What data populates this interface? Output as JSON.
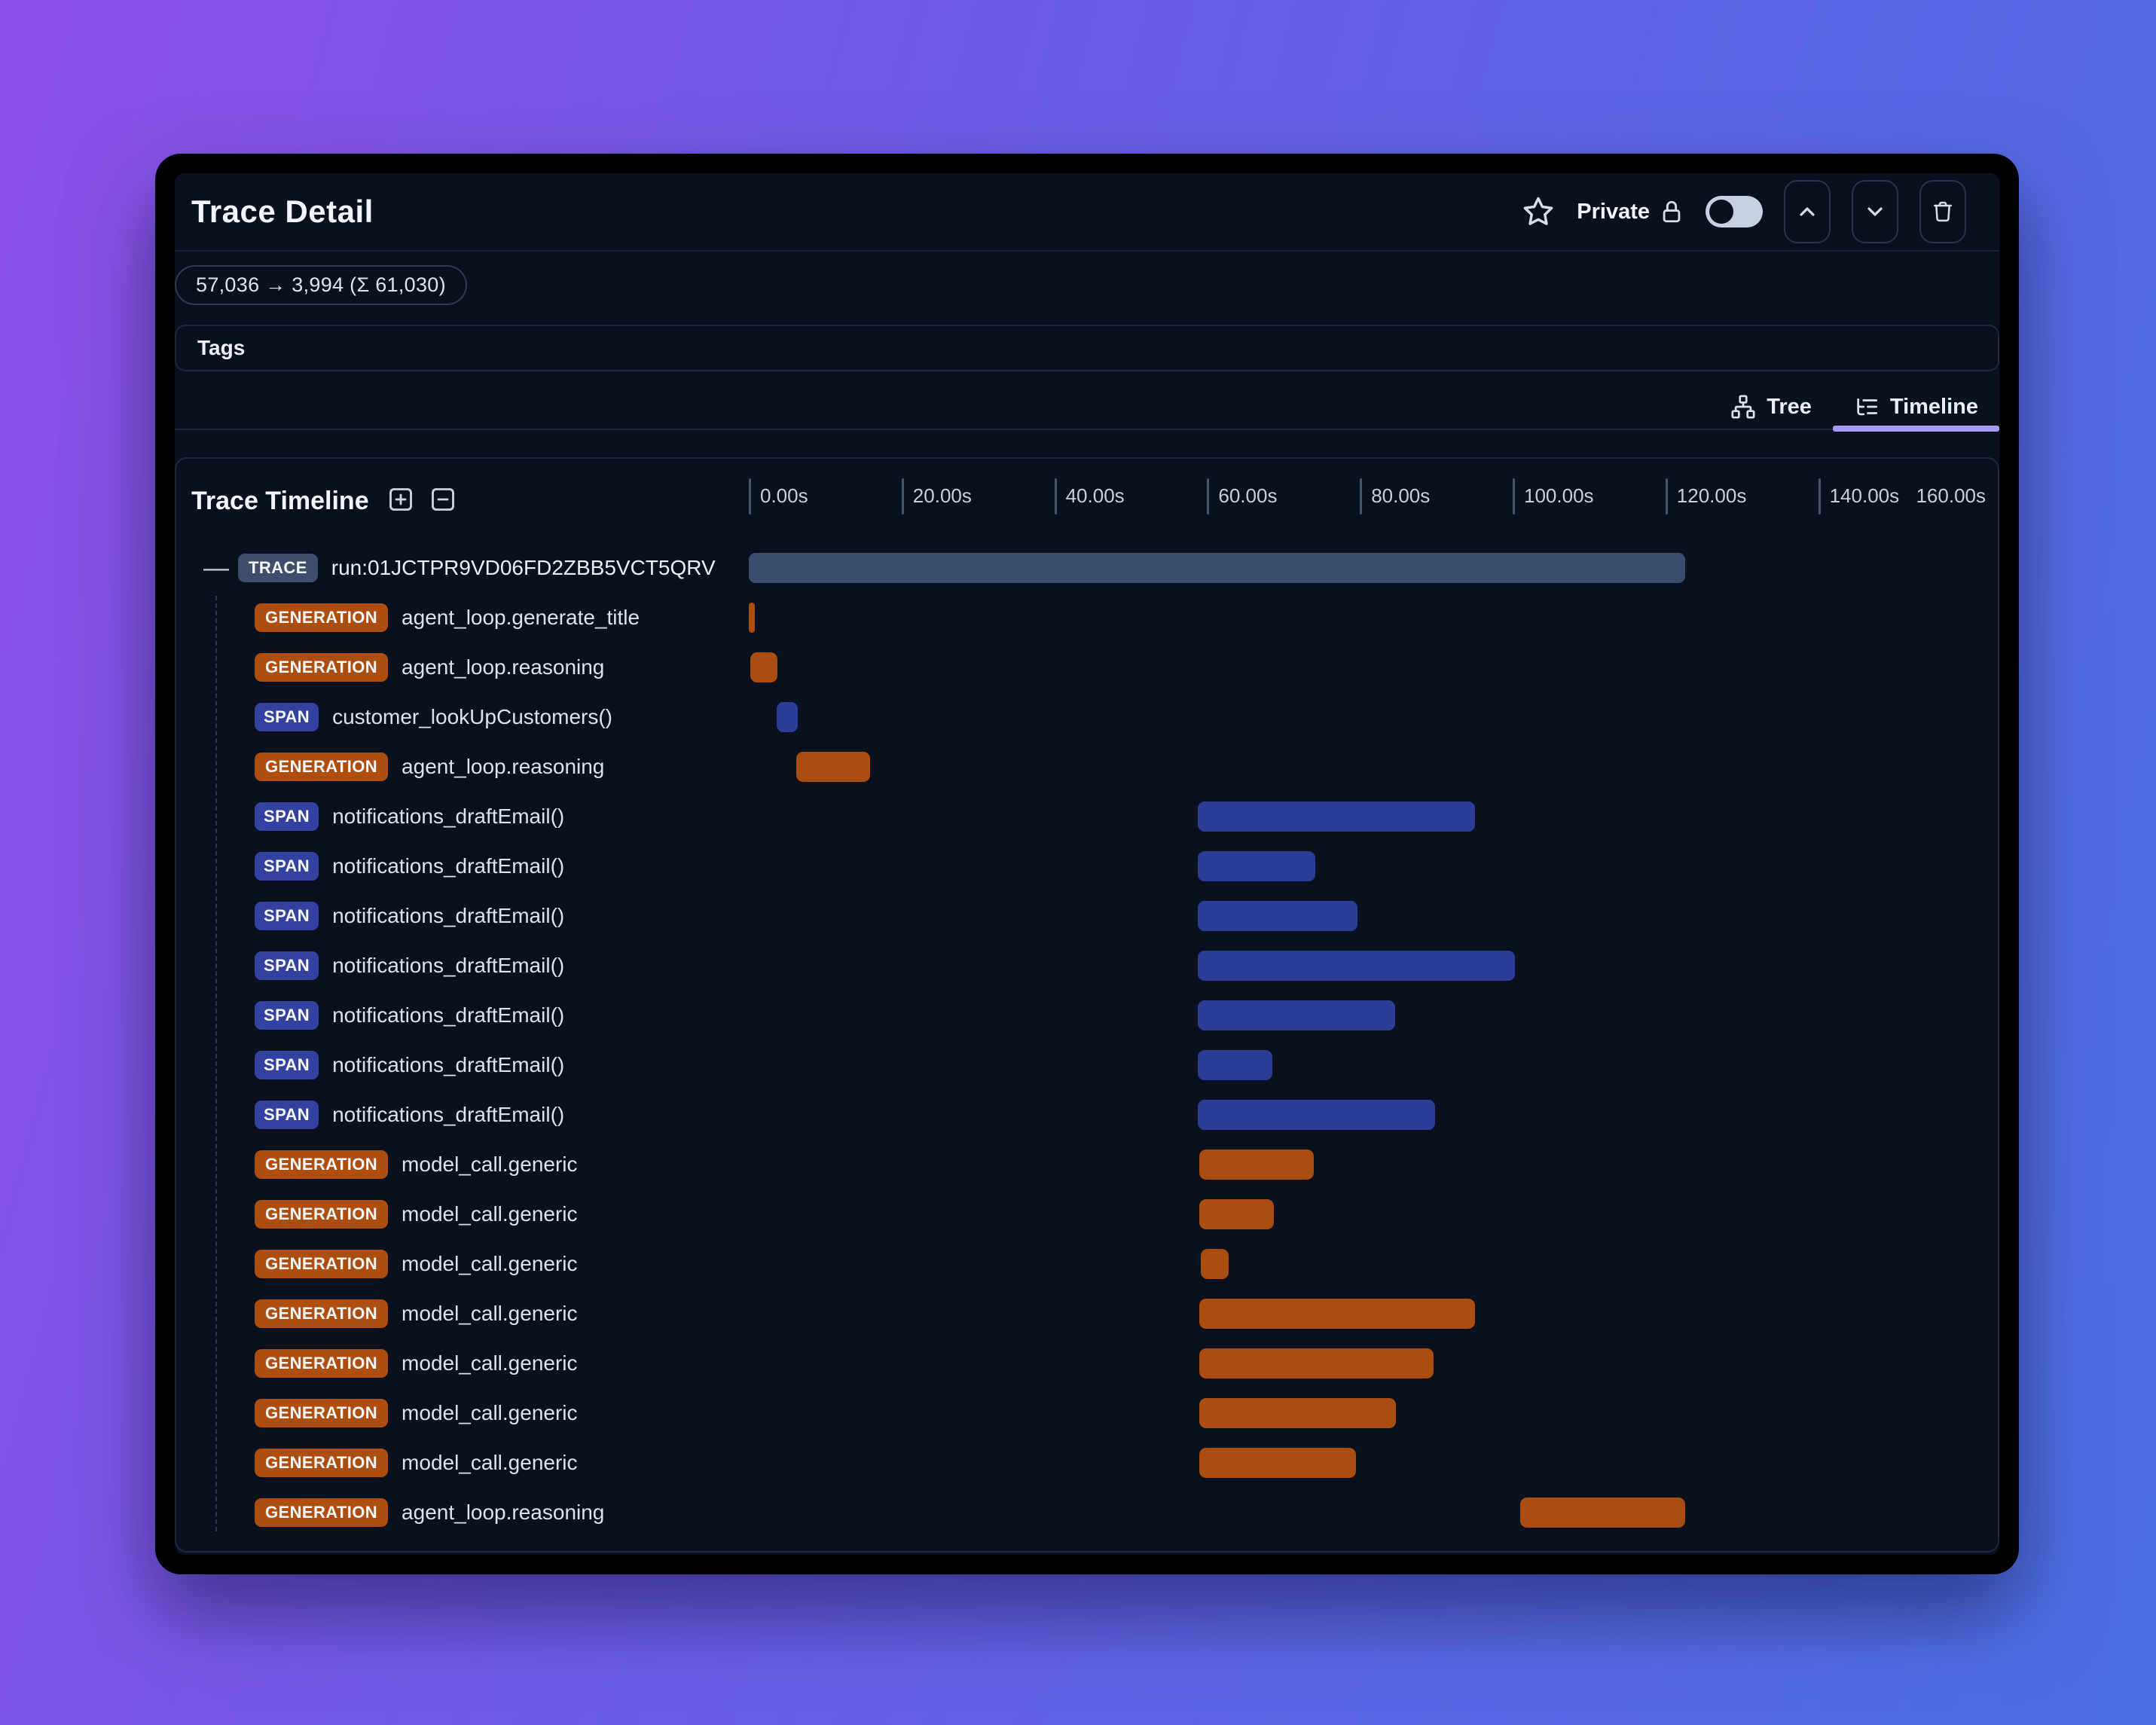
{
  "header": {
    "title": "Trace Detail",
    "privacy": {
      "label": "Private",
      "enabled": false
    },
    "icons": {
      "favorite": "star-icon",
      "lock": "lock-icon",
      "up": "chevron-up-icon",
      "down": "chevron-down-icon",
      "delete": "trash-icon"
    }
  },
  "token_badge": "57,036 → 3,994 (Σ 61,030)",
  "tags": {
    "label": "Tags"
  },
  "view_tabs": [
    {
      "label": "Tree",
      "icon": "tree-icon",
      "active": false
    },
    {
      "label": "Timeline",
      "icon": "list-tree-icon",
      "active": true
    }
  ],
  "timeline": {
    "title": "Trace Timeline",
    "controls": [
      {
        "icon": "plus-square-icon"
      },
      {
        "icon": "minus-square-icon"
      }
    ],
    "axis": {
      "unit": "s",
      "ticks": [
        {
          "s": 0,
          "label": "0.00s"
        },
        {
          "s": 20,
          "label": "20.00s"
        },
        {
          "s": 40,
          "label": "40.00s"
        },
        {
          "s": 60,
          "label": "60.00s"
        },
        {
          "s": 80,
          "label": "80.00s"
        },
        {
          "s": 100,
          "label": "100.00s"
        },
        {
          "s": 120,
          "label": "120.00s"
        },
        {
          "s": 140,
          "label": "140.00s"
        }
      ],
      "end_label": {
        "s": 160,
        "label": "160.00s"
      }
    },
    "rows": [
      {
        "type": "TRACE",
        "label": "run:01JCTPR9VD06FD2ZBB5VCT5QRV",
        "start_s": 0,
        "end_s": 122.6
      },
      {
        "type": "GENERATION",
        "label": "agent_loop.generate_title",
        "start_s": 0,
        "end_s": 0.8
      },
      {
        "type": "GENERATION",
        "label": "agent_loop.reasoning",
        "start_s": 0.2,
        "end_s": 3.7
      },
      {
        "type": "SPAN",
        "label": "customer_lookUpCustomers()",
        "start_s": 3.6,
        "end_s": 6.4
      },
      {
        "type": "GENERATION",
        "label": "agent_loop.reasoning",
        "start_s": 6.2,
        "end_s": 15.9
      },
      {
        "type": "SPAN",
        "label": "notifications_draftEmail()",
        "start_s": 58.8,
        "end_s": 95.1
      },
      {
        "type": "SPAN",
        "label": "notifications_draftEmail()",
        "start_s": 58.8,
        "end_s": 74.2
      },
      {
        "type": "SPAN",
        "label": "notifications_draftEmail()",
        "start_s": 58.8,
        "end_s": 79.7
      },
      {
        "type": "SPAN",
        "label": "notifications_draftEmail()",
        "start_s": 58.8,
        "end_s": 100.3
      },
      {
        "type": "SPAN",
        "label": "notifications_draftEmail()",
        "start_s": 58.8,
        "end_s": 84.6
      },
      {
        "type": "SPAN",
        "label": "notifications_draftEmail()",
        "start_s": 58.8,
        "end_s": 68.5
      },
      {
        "type": "SPAN",
        "label": "notifications_draftEmail()",
        "start_s": 58.8,
        "end_s": 89.8
      },
      {
        "type": "GENERATION",
        "label": "model_call.generic",
        "start_s": 59.0,
        "end_s": 74.0
      },
      {
        "type": "GENERATION",
        "label": "model_call.generic",
        "start_s": 59.0,
        "end_s": 68.7
      },
      {
        "type": "GENERATION",
        "label": "model_call.generic",
        "start_s": 59.2,
        "end_s": 62.8
      },
      {
        "type": "GENERATION",
        "label": "model_call.generic",
        "start_s": 59.0,
        "end_s": 95.1
      },
      {
        "type": "GENERATION",
        "label": "model_call.generic",
        "start_s": 59.0,
        "end_s": 89.6
      },
      {
        "type": "GENERATION",
        "label": "model_call.generic",
        "start_s": 59.0,
        "end_s": 84.7
      },
      {
        "type": "GENERATION",
        "label": "model_call.generic",
        "start_s": 59.0,
        "end_s": 79.5
      },
      {
        "type": "GENERATION",
        "label": "agent_loop.reasoning",
        "start_s": 101.0,
        "end_s": 122.6
      }
    ]
  },
  "colors": {
    "background_gradient": [
      "#8d52e9",
      "#4a71e4"
    ],
    "surface": "#0a101e",
    "border": "#1c2940",
    "trace": "#3c4d6c",
    "generation": "#a94d10",
    "span": "#2c3d97",
    "active_tab_underline": "#a49bf1"
  }
}
